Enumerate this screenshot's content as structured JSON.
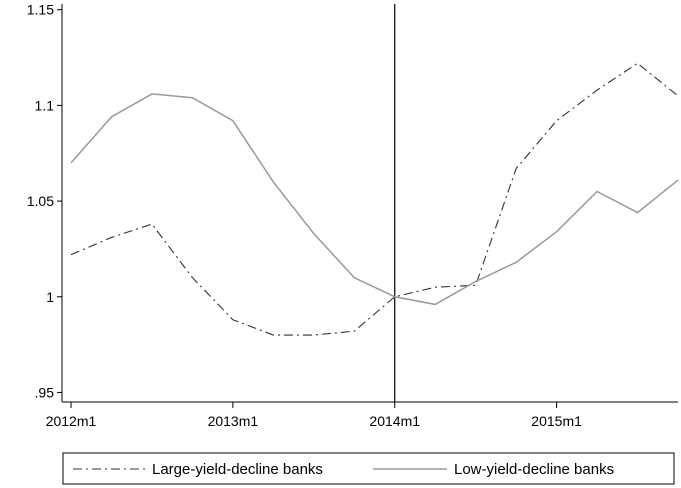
{
  "chart_data": {
    "type": "line",
    "title": "",
    "xlabel": "",
    "ylabel": "",
    "x": [
      "2012m1",
      "2012m4",
      "2012m7",
      "2012m10",
      "2013m1",
      "2013m4",
      "2013m7",
      "2013m10",
      "2014m1",
      "2014m4",
      "2014m7",
      "2014m10",
      "2015m1",
      "2015m4",
      "2015m7",
      "2015m10"
    ],
    "xticks": [
      "2012m1",
      "2013m1",
      "2014m1",
      "2015m1"
    ],
    "yticks": [
      {
        "value": 0.95,
        "label": ".95"
      },
      {
        "value": 1.0,
        "label": "1"
      },
      {
        "value": 1.05,
        "label": "1.05"
      },
      {
        "value": 1.1,
        "label": "1.1"
      },
      {
        "value": 1.15,
        "label": "1.15"
      }
    ],
    "ylim": [
      0.945,
      1.153
    ],
    "vertical_line_at": "2014m1",
    "grid": false,
    "legend_position": "bottom",
    "series": [
      {
        "name": "Large-yield-decline banks",
        "style": "dash-dot",
        "color": "#333333",
        "values": [
          1.022,
          1.031,
          1.038,
          1.01,
          0.988,
          0.98,
          0.98,
          0.982,
          1.0,
          1.005,
          1.006,
          1.067,
          1.092,
          1.108,
          1.122,
          1.105
        ]
      },
      {
        "name": "Low-yield-decline banks",
        "style": "solid",
        "color": "#999999",
        "values": [
          1.07,
          1.094,
          1.106,
          1.104,
          1.092,
          1.06,
          1.033,
          1.01,
          1.0,
          0.996,
          1.008,
          1.018,
          1.034,
          1.055,
          1.044,
          1.061
        ]
      }
    ]
  }
}
